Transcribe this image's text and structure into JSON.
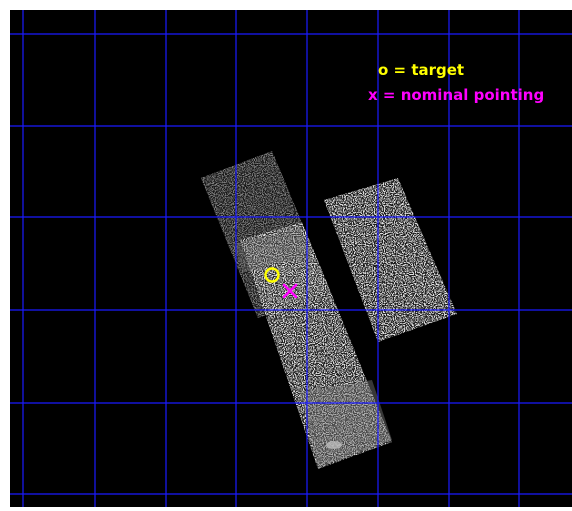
{
  "image": {
    "background": "#000000",
    "grid_color": "#1a1aff",
    "detector_color": "#8c8c8c",
    "frame_color": "#ffffff"
  },
  "legend": {
    "target_text": "o = target",
    "target_color": "#ffff00",
    "pointing_text": "x = nominal pointing",
    "pointing_color": "#ff00ff"
  },
  "markers": {
    "target_symbol": "o",
    "pointing_symbol": "x"
  }
}
